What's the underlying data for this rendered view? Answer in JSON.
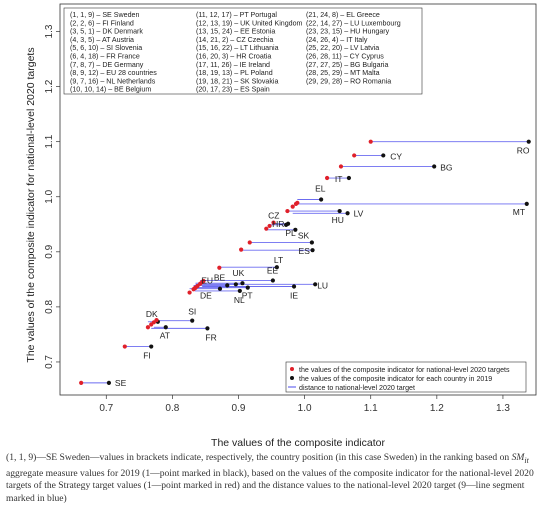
{
  "chart_data": {
    "type": "scatter",
    "xlabel": "The values of the composite indicator",
    "ylabel": "The values of the composite indicator for national-level 2020 targets",
    "xlim": [
      0.63,
      1.35
    ],
    "ylim": [
      0.64,
      1.35
    ],
    "xticks": [
      "0.7",
      "0.8",
      "0.9",
      "1.0",
      "1.1",
      "1.2",
      "1.3"
    ],
    "yticks": [
      "0.7",
      "0.8",
      "0.9",
      "1.0",
      "1.1",
      "1.2",
      "1.3"
    ],
    "legend_position": "bottom-right",
    "series": [
      {
        "name": "the values of the composite indicator for national-level 2020 targets",
        "color": "#e0202a"
      },
      {
        "name": "the values of the composite indicator for each country in 2019",
        "color": "#111111"
      },
      {
        "name": "distance to national-level 2020 target",
        "color": "#6b6bf0"
      }
    ],
    "countries": [
      {
        "label": "SE",
        "x2019": 0.704,
        "target": 0.662,
        "y": 0.662
      },
      {
        "label": "FI",
        "x2019": 0.768,
        "target": 0.728,
        "y": 0.728
      },
      {
        "label": "DK",
        "x2019": 0.778,
        "target": 0.763,
        "y": 0.773
      },
      {
        "label": "AT",
        "x2019": 0.79,
        "target": 0.772,
        "y": 0.763
      },
      {
        "label": "SI",
        "x2019": 0.83,
        "target": 0.776,
        "y": 0.775
      },
      {
        "label": "FR",
        "x2019": 0.853,
        "target": 0.768,
        "y": 0.761
      },
      {
        "label": "DE",
        "x2019": 0.872,
        "target": 0.826,
        "y": 0.833
      },
      {
        "label": "EU",
        "x2019": 0.883,
        "target": 0.832,
        "y": 0.839
      },
      {
        "label": "NL",
        "x2019": 0.902,
        "target": 0.834,
        "y": 0.829
      },
      {
        "label": "BE",
        "x2019": 0.896,
        "target": 0.835,
        "y": 0.841
      },
      {
        "label": "UK",
        "x2019": 0.906,
        "target": 0.835,
        "y": 0.843
      },
      {
        "label": "PT",
        "x2019": 0.914,
        "target": 0.838,
        "y": 0.835
      },
      {
        "label": "EE",
        "x2019": 0.952,
        "target": 0.842,
        "y": 0.848
      },
      {
        "label": "IE",
        "x2019": 0.984,
        "target": 0.845,
        "y": 0.837
      },
      {
        "label": "LU",
        "x2019": 1.016,
        "target": 0.847,
        "y": 0.841
      },
      {
        "label": "LT",
        "x2019": 0.958,
        "target": 0.871,
        "y": 0.872
      },
      {
        "label": "ES",
        "x2019": 1.012,
        "target": 0.904,
        "y": 0.903
      },
      {
        "label": "SK",
        "x2019": 1.011,
        "target": 0.917,
        "y": 0.917
      },
      {
        "label": "PL",
        "x2019": 0.986,
        "target": 0.942,
        "y": 0.94
      },
      {
        "label": "HR",
        "x2019": 0.972,
        "target": 0.947,
        "y": 0.949
      },
      {
        "label": "CZ",
        "x2019": 0.975,
        "target": 0.953,
        "y": 0.951
      },
      {
        "label": "HU",
        "x2019": 1.053,
        "target": 0.974,
        "y": 0.974
      },
      {
        "label": "LV",
        "x2019": 1.065,
        "target": 0.982,
        "y": 0.97
      },
      {
        "label": "MT",
        "x2019": 1.336,
        "target": 0.987,
        "y": 0.987
      },
      {
        "label": "EL",
        "x2019": 1.025,
        "target": 0.989,
        "y": 0.995
      },
      {
        "label": "IT",
        "x2019": 1.067,
        "target": 1.034,
        "y": 1.034
      },
      {
        "label": "BG",
        "x2019": 1.196,
        "target": 1.055,
        "y": 1.055
      },
      {
        "label": "CY",
        "x2019": 1.119,
        "target": 1.075,
        "y": 1.075
      },
      {
        "label": "RO",
        "x2019": 1.339,
        "target": 1.1,
        "y": 1.1
      }
    ],
    "key": [
      "(1, 1, 9) – SE Sweden",
      "(11, 12, 17) – PT Portugal",
      "(21, 24, 8) – EL Greece",
      "(2, 2, 6) – FI Finland",
      "(12, 13, 19) – UK United Kingdom",
      "(22, 14, 27) – LU Luxembourg",
      "(3, 5, 1) – DK Denmark",
      "(13, 15, 24) – EE Estonia",
      "(23, 23, 15) – HU Hungary",
      "(4, 3, 5) – AT Austria",
      "(14, 21, 2) – CZ Czechia",
      "(24, 26, 4) – IT Italy",
      "(5, 6, 10) – SI Slovenia",
      "(15, 16, 22) – LT Lithuania",
      "(25, 22, 20) – LV Latvia",
      "(6, 4, 18) – FR France",
      "(16, 20, 3) – HR Croatia",
      "(26, 28, 11) – CY Cyprus",
      "(7, 8, 7) – DE Germany",
      "(17, 11, 26) – IE Ireland",
      "(27, 27, 25) – BG Bulgaria",
      "(8, 9, 12) – EU 28 countries",
      "(18, 19, 13) – PL Poland",
      "(28, 25, 29) – MT Malta",
      "(9, 7, 16) – NL Netherlands",
      "(19, 18, 21) – SK Slovakia",
      "(29, 29, 28) – RO Romania",
      "(10, 10, 14) – BE Belgium",
      "(20, 17, 23) – ES Spain",
      ""
    ]
  },
  "caption": {
    "part1": "(1, 1, 9)—SE Sweden—values in brackets indicate, respectively, the country position (in this case Sweden) in the ranking based on ",
    "symbol": "SM",
    "subscript": "it",
    "part2": " aggregate measure values for 2019 (1—point marked in black), based on the values of the composite indicator for the national-level 2020 targets of the Strategy target values (1—point marked in red) and the distance values to the national-level 2020 target (9—line segment marked in blue)"
  }
}
